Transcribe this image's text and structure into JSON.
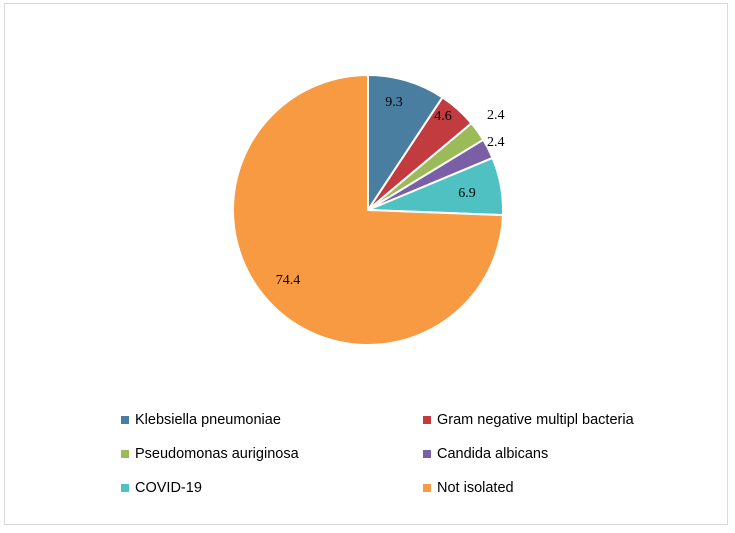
{
  "chart_data": {
    "type": "pie",
    "title": "",
    "legend_position": "bottom",
    "series": [
      {
        "name": "Klebsiella pneumoniae",
        "value": 9.3,
        "label": "9.3",
        "color": "#4a7ea0"
      },
      {
        "name": "Gram negative multipl bacteria",
        "value": 4.6,
        "label": "4.6",
        "color": "#c23b3f"
      },
      {
        "name": "Pseudomonas auriginosa",
        "value": 2.4,
        "label": "2.4",
        "color": "#9bbb59"
      },
      {
        "name": "Candida albicans",
        "value": 2.4,
        "label": "2.4",
        "color": "#7b5fa6"
      },
      {
        "name": "COVID-19",
        "value": 6.9,
        "label": "6.9",
        "color": "#4fc1c3"
      },
      {
        "name": "Not isolated",
        "value": 74.4,
        "label": "74.4",
        "color": "#f79a42"
      }
    ]
  }
}
